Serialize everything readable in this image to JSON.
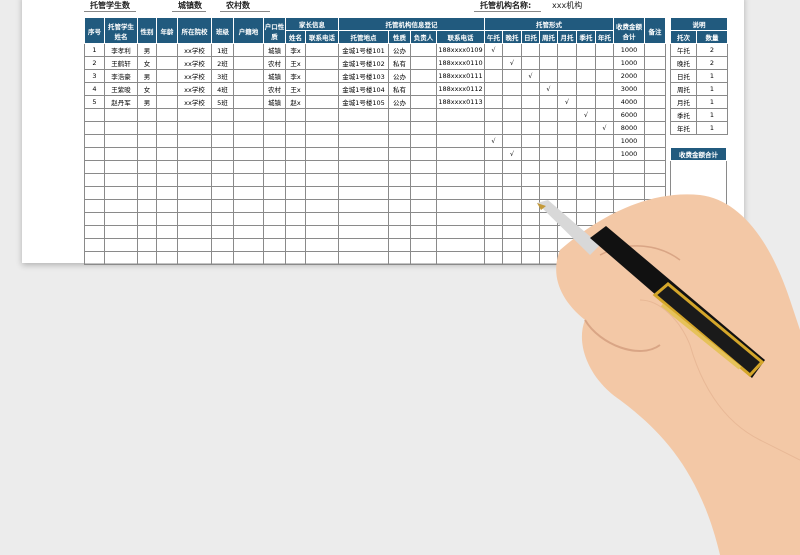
{
  "top": {
    "students": "托管学生数",
    "town": "城镇数",
    "rural": "农村数",
    "org_label": "托管机构名称:",
    "org_value": "xxx机构"
  },
  "headers": {
    "no": "序号",
    "name": "托管学生姓名",
    "gender": "性别",
    "age": "年龄",
    "school": "所在院校",
    "class": "班级",
    "hukou_place": "户籍地",
    "hukou_type": "户口性质",
    "parent": "家长信息",
    "parent_name": "姓名",
    "parent_phone": "联系电话",
    "org": "托管机构信息登记",
    "org_addr": "托管地点",
    "org_type": "性质",
    "org_lead": "负责人",
    "org_phone": "联系电话",
    "form": "托管形式",
    "forms": [
      "午托",
      "晚托",
      "日托",
      "周托",
      "月托",
      "季托",
      "年托"
    ],
    "fee": "收费金额合计",
    "note": "备注"
  },
  "rows": [
    {
      "no": "1",
      "name": "李孝利",
      "gender": "男",
      "school": "xx学校",
      "class": "1班",
      "hukou": "城镇",
      "parent": "李x",
      "addr": "金城1号楼101",
      "type": "公办",
      "phone": "188xxxx0109",
      "check": 0,
      "fee": "1000"
    },
    {
      "no": "2",
      "name": "王鹤轩",
      "gender": "女",
      "school": "xx学校",
      "class": "2班",
      "hukou": "农村",
      "parent": "王x",
      "addr": "金城1号楼102",
      "type": "私有",
      "phone": "188xxxx0110",
      "check": 1,
      "fee": "1000"
    },
    {
      "no": "3",
      "name": "李浩豪",
      "gender": "男",
      "school": "xx学校",
      "class": "3班",
      "hukou": "城镇",
      "parent": "李x",
      "addr": "金城1号楼103",
      "type": "公办",
      "phone": "188xxxx0111",
      "check": 2,
      "fee": "2000"
    },
    {
      "no": "4",
      "name": "王紫晙",
      "gender": "女",
      "school": "xx学校",
      "class": "4班",
      "hukou": "农村",
      "parent": "王x",
      "addr": "金城1号楼104",
      "type": "私有",
      "phone": "188xxxx0112",
      "check": 3,
      "fee": "3000"
    },
    {
      "no": "5",
      "name": "赵丹军",
      "gender": "男",
      "school": "xx学校",
      "class": "5班",
      "hukou": "城镇",
      "parent": "赵x",
      "addr": "金城1号楼105",
      "type": "公办",
      "phone": "188xxxx0113",
      "check": 4,
      "fee": "4000"
    },
    {
      "check": 5,
      "fee": "6000"
    },
    {
      "check": 6,
      "fee": "8000"
    },
    {
      "check": 0,
      "fee": "1000"
    },
    {
      "check": 1,
      "fee": "1000"
    }
  ],
  "check_mark": "√",
  "empty_rows": 8,
  "side": {
    "title": "说明",
    "col1": "托次",
    "col2": "数量",
    "items": [
      [
        "午托",
        "2"
      ],
      [
        "晚托",
        "2"
      ],
      [
        "日托",
        "1"
      ],
      [
        "周托",
        "1"
      ],
      [
        "月托",
        "1"
      ],
      [
        "季托",
        "1"
      ],
      [
        "年托",
        "1"
      ]
    ]
  },
  "fee_box": {
    "title": "收费金额合计"
  },
  "colors": {
    "header": "#215a7e",
    "background": "#ececec"
  }
}
